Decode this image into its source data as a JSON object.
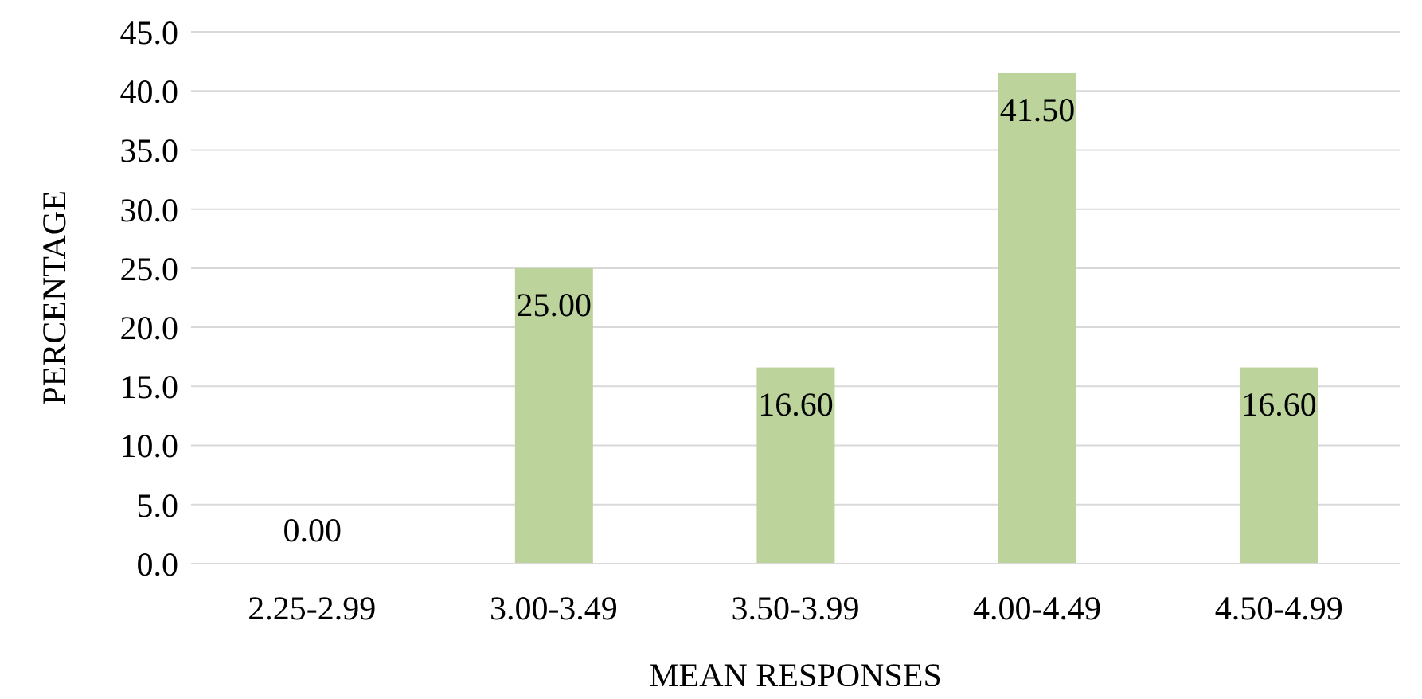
{
  "chart_data": {
    "type": "bar",
    "xlabel": "MEAN RESPONSES",
    "ylabel": "PERCENTAGE",
    "categories": [
      "2.25-2.99",
      "3.00-3.49",
      "3.50-3.99",
      "4.00-4.49",
      "4.50-4.99"
    ],
    "values": [
      0,
      25,
      16.6,
      41.5,
      16.6
    ],
    "value_labels": [
      "0.00",
      "25.00",
      "16.60",
      "41.50",
      "16.60"
    ],
    "color": "#bcd49c",
    "ylim": [
      0,
      45
    ],
    "yticks": [
      {
        "value": 0,
        "label": "0.0"
      },
      {
        "value": 5,
        "label": "5.0"
      },
      {
        "value": 10,
        "label": "10.0"
      },
      {
        "value": 15,
        "label": "15.0"
      },
      {
        "value": 20,
        "label": "20.0"
      },
      {
        "value": 25,
        "label": "25.0"
      },
      {
        "value": 30,
        "label": "30.0"
      },
      {
        "value": 35,
        "label": "35.0"
      },
      {
        "value": 40,
        "label": "40.0"
      },
      {
        "value": 45,
        "label": "45.0"
      }
    ],
    "grid": "y"
  }
}
